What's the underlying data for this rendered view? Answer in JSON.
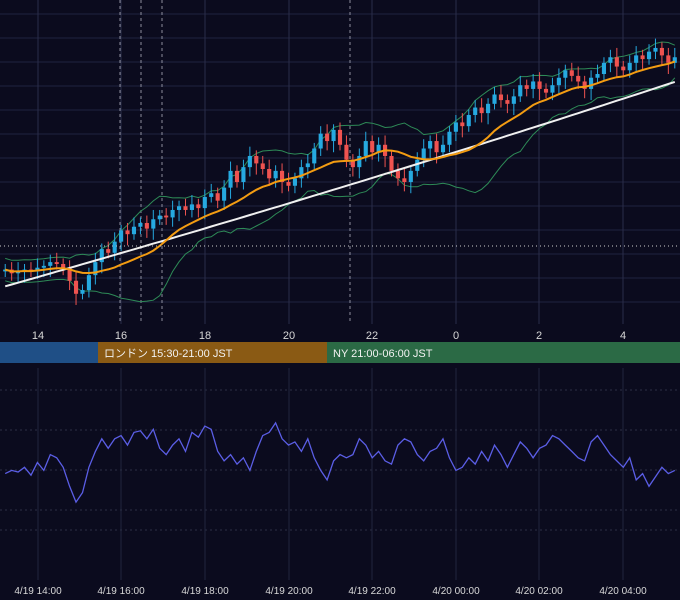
{
  "chart_data": [
    {
      "type": "candlestick",
      "panel": "price",
      "x_tick_labels": [
        "14",
        "16",
        "18",
        "20",
        "22",
        "0",
        "2",
        "4"
      ],
      "grid": true,
      "price_line": "dotted",
      "colors": {
        "up": "#26a9e0",
        "down": "#ef5350",
        "bollinger": "#2e8b57",
        "ma_mid": "#f39c12",
        "ma_long": "#f0f0f0",
        "grid": "#1f2340",
        "session_vline": "#8c8c9c"
      },
      "sessions": [
        {
          "label": "",
          "color": "#1f4f86"
        },
        {
          "label": "ロンドン 15:30-21:00 JST",
          "color": "#8a5a14"
        },
        {
          "label": "NY 21:00-06:00 JST",
          "color": "#2b6a45"
        }
      ],
      "series": [
        {
          "name": "",
          "kind": "close",
          "values": [
            51,
            49,
            50,
            51,
            50,
            52,
            53,
            55,
            54,
            52,
            45,
            38,
            40,
            48,
            55,
            62,
            60,
            66,
            72,
            70,
            74,
            76,
            73,
            78,
            80,
            79,
            83,
            85,
            83,
            86,
            84,
            90,
            92,
            88,
            95,
            104,
            98,
            106,
            112,
            108,
            105,
            100,
            104,
            98,
            96,
            100,
            106,
            108,
            116,
            124,
            120,
            126,
            118,
            110,
            106,
            112,
            120,
            114,
            118,
            112,
            104,
            100,
            98,
            104,
            110,
            116,
            120,
            114,
            118,
            125,
            130,
            128,
            134,
            138,
            135,
            140,
            145,
            142,
            140,
            144,
            150,
            148,
            152,
            148,
            146,
            150,
            154,
            158,
            155,
            152,
            148,
            154,
            156,
            162,
            165,
            160,
            158,
            162,
            166,
            164,
            168,
            170,
            166,
            162,
            165
          ]
        },
        {
          "name": "",
          "kind": "ma_mid"
        },
        {
          "name": "",
          "kind": "ma_long"
        },
        {
          "name": "",
          "kind": "bollinger_upper"
        },
        {
          "name": "",
          "kind": "bollinger_lower"
        }
      ]
    },
    {
      "type": "line",
      "panel": "oscillator",
      "x_tick_labels": [
        "4/19 14:00",
        "4/19 16:00",
        "4/19 18:00",
        "4/19 20:00",
        "4/19 22:00",
        "4/20 00:00",
        "4/20 02:00",
        "4/20 04:00"
      ],
      "color": "#5b5ee6",
      "values": [
        48,
        50,
        49,
        52,
        47,
        55,
        50,
        60,
        58,
        52,
        40,
        30,
        36,
        52,
        62,
        70,
        64,
        70,
        72,
        66,
        74,
        75,
        70,
        76,
        64,
        60,
        66,
        70,
        62,
        74,
        71,
        78,
        76,
        62,
        56,
        60,
        54,
        58,
        50,
        62,
        72,
        74,
        80,
        70,
        66,
        68,
        62,
        70,
        58,
        50,
        44,
        56,
        60,
        58,
        60,
        70,
        66,
        58,
        62,
        56,
        54,
        66,
        70,
        68,
        60,
        56,
        62,
        64,
        70,
        58,
        50,
        52,
        58,
        54,
        62,
        56,
        66,
        60,
        52,
        60,
        68,
        64,
        58,
        64,
        66,
        72,
        70,
        66,
        62,
        58,
        56,
        68,
        72,
        66,
        60,
        56,
        52,
        58,
        44,
        48,
        40,
        46,
        52,
        48,
        50
      ]
    }
  ]
}
